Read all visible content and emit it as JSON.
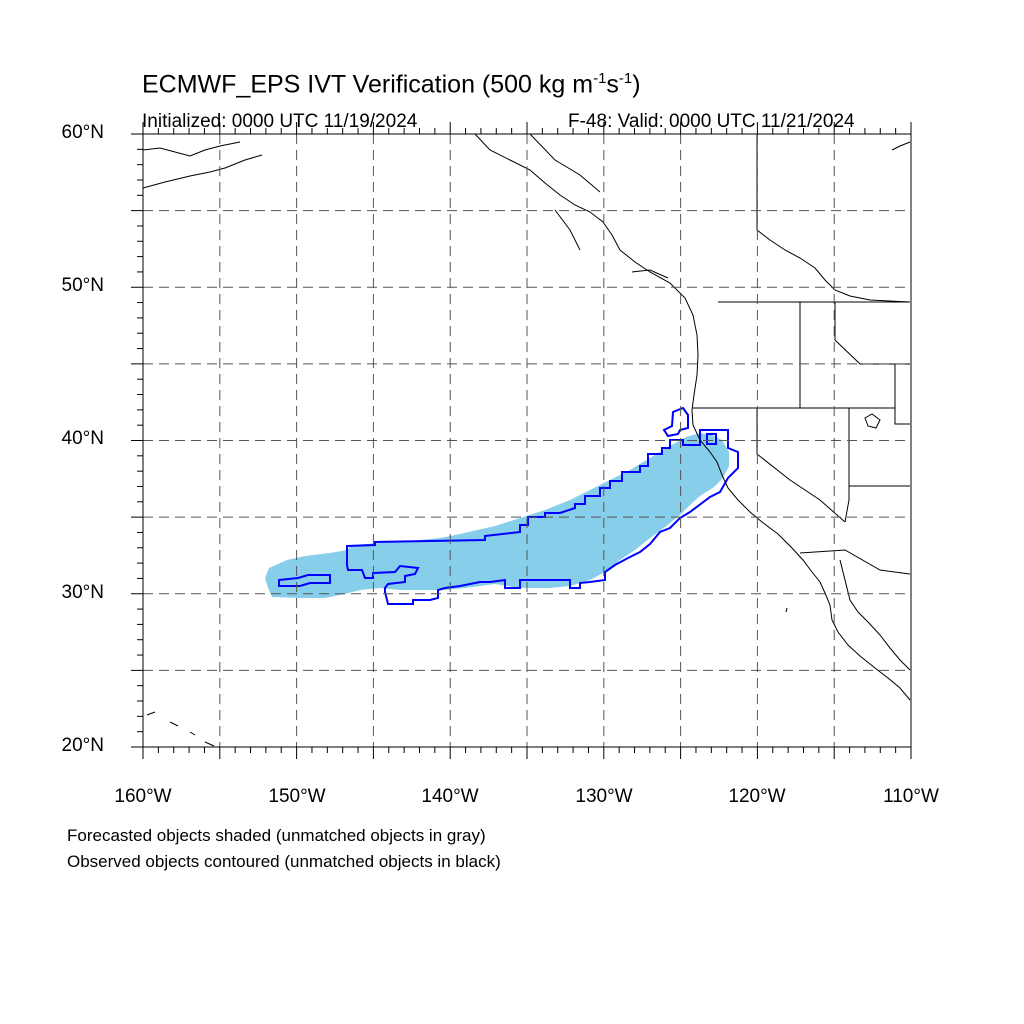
{
  "title": {
    "main": "ECMWF_EPS IVT Verification (500 kg m",
    "sup1": "-1",
    "mid": "s",
    "sup2": "-1",
    "end": ")"
  },
  "initialized": "Initialized: 0000 UTC 11/19/2024",
  "valid": "F-48: Valid: 0000 UTC 11/21/2024",
  "lat_labels": [
    "60°N",
    "50°N",
    "40°N",
    "30°N",
    "20°N"
  ],
  "lon_labels": [
    "160°W",
    "150°W",
    "140°W",
    "130°W",
    "120°W",
    "110°W"
  ],
  "notes": [
    "Forecasted objects shaded (unmatched objects in gray)",
    "Observed objects contoured (unmatched objects in black)"
  ],
  "map": {
    "lon_range": [
      -160,
      -110
    ],
    "lat_range": [
      20,
      60
    ],
    "grid_spacing_deg": 5,
    "forecast_fill_color": "#87CEEB",
    "observed_contour_color": "#0000FF",
    "coastline_color": "#000000"
  }
}
